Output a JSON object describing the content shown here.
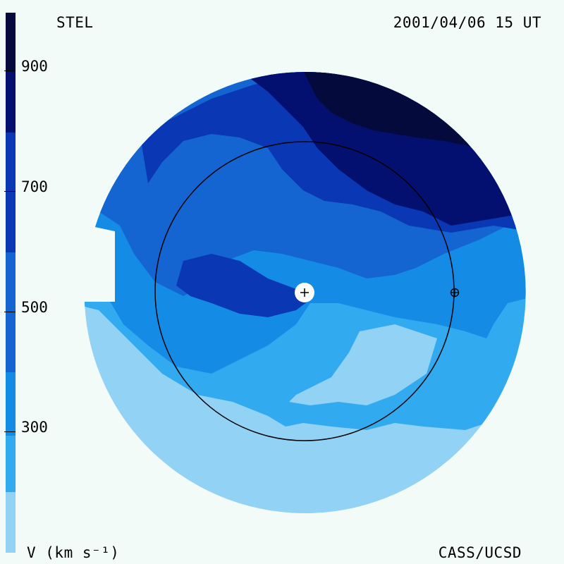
{
  "header": {
    "source_label": "STEL",
    "timestamp": "2001/04/06 15 UT"
  },
  "footer": {
    "units_label": "V (km s⁻¹)",
    "credit": "CASS/UCSD"
  },
  "legend": {
    "ticks": [
      "900",
      "700",
      "500",
      "300"
    ],
    "colors": [
      "#050a3c",
      "#041070",
      "#0a37b4",
      "#1464d2",
      "#148ce6",
      "#32aaf0",
      "#91d2f5"
    ]
  },
  "palette": {
    "background": "#f2fbf8",
    "v_lt_300": "#91d2f5",
    "v_300_400": "#32aaf0",
    "v_400_500": "#148ce6",
    "v_500_600": "#1464d2",
    "v_600_700": "#0a37b4",
    "v_700_800": "#041070",
    "v_gt_800": "#050a3c"
  },
  "markers": {
    "sun": "sun-center-icon",
    "earth": "earth-icon"
  }
}
